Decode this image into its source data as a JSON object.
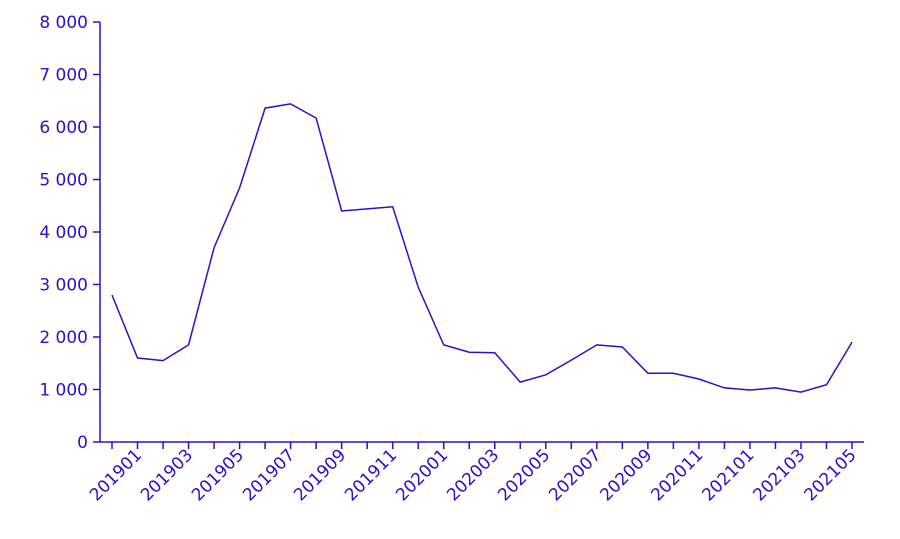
{
  "chart_data": {
    "type": "line",
    "color": "#2a12c8",
    "categories": [
      null,
      "201901",
      null,
      "201903",
      null,
      "201905",
      null,
      "201907",
      null,
      "201909",
      null,
      "201911",
      null,
      "202001",
      null,
      "202003",
      null,
      "202005",
      null,
      "202007",
      null,
      "202009",
      null,
      "202011",
      null,
      "202101",
      null,
      "202103",
      null,
      "202105"
    ],
    "values": [
      2800,
      1600,
      1550,
      1850,
      3700,
      4840,
      6360,
      6440,
      6170,
      4400,
      4440,
      4480,
      2950,
      1850,
      1710,
      1700,
      1140,
      1280,
      1560,
      1850,
      1810,
      1310,
      1310,
      1200,
      1030,
      990,
      1030,
      950,
      1090,
      1900
    ],
    "ylim": [
      0,
      8000
    ],
    "yticks": [
      0,
      {
        "value": 1000,
        "label": "1 000"
      },
      {
        "value": 2000,
        "label": "2 000"
      },
      {
        "value": 3000,
        "label": "3 000"
      },
      {
        "value": 4000,
        "label": "4 000"
      },
      {
        "value": 5000,
        "label": "5 000"
      },
      {
        "value": 6000,
        "label": "6 000"
      },
      {
        "value": 7000,
        "label": "7 000"
      },
      {
        "value": 8000,
        "label": "8 000"
      }
    ]
  }
}
